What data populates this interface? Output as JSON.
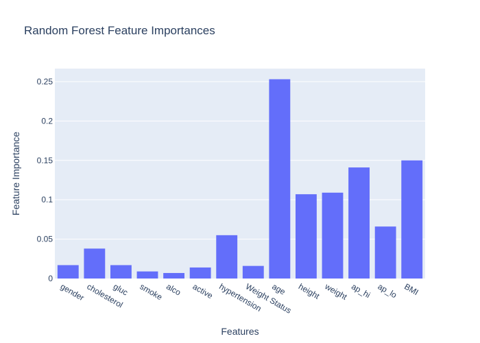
{
  "chart_data": {
    "type": "bar",
    "title": "Random Forest Feature Importances",
    "xlabel": "Features",
    "ylabel": "Feature Importance",
    "categories": [
      "gender",
      "cholesterol",
      "gluc",
      "smoke",
      "alco",
      "active",
      "hypertension",
      "Weight Status",
      "age",
      "height",
      "weight",
      "ap_hi",
      "ap_lo",
      "BMI"
    ],
    "values": [
      0.017,
      0.038,
      0.017,
      0.009,
      0.007,
      0.014,
      0.055,
      0.016,
      0.253,
      0.107,
      0.109,
      0.141,
      0.066,
      0.15
    ],
    "ylim": [
      0,
      0.2665
    ],
    "yticks": [
      0,
      0.05,
      0.1,
      0.15,
      0.2,
      0.25
    ],
    "ytick_labels": [
      "0",
      "0.05",
      "0.1",
      "0.15",
      "0.2",
      "0.25"
    ],
    "grid": true,
    "colors": {
      "bar": "#636efa",
      "plot_bg": "#e5ecf6",
      "grid": "#ffffff",
      "text": "#2a3f5f"
    }
  }
}
